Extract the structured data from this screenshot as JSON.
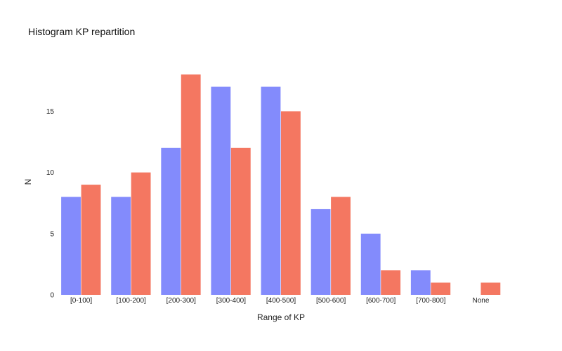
{
  "chart_data": {
    "type": "bar",
    "title": "Histogram KP repartition",
    "xlabel": "Range of KP",
    "ylabel": "N",
    "categories": [
      "[0-100]",
      "[100-200]",
      "[200-300]",
      "[300-400]",
      "[400-500]",
      "[500-600]",
      "[600-700]",
      "[700-800]",
      "None"
    ],
    "series": [
      {
        "values": [
          8,
          8,
          12,
          17,
          17,
          7,
          5,
          2,
          0
        ],
        "color": "#838bfc"
      },
      {
        "values": [
          9,
          10,
          18,
          12,
          15,
          8,
          2,
          1,
          1
        ],
        "color": "#f47761"
      }
    ],
    "ylim": [
      0,
      19.5
    ],
    "yticks": [
      0,
      5,
      10,
      15
    ],
    "grid": false,
    "legend": "none"
  }
}
